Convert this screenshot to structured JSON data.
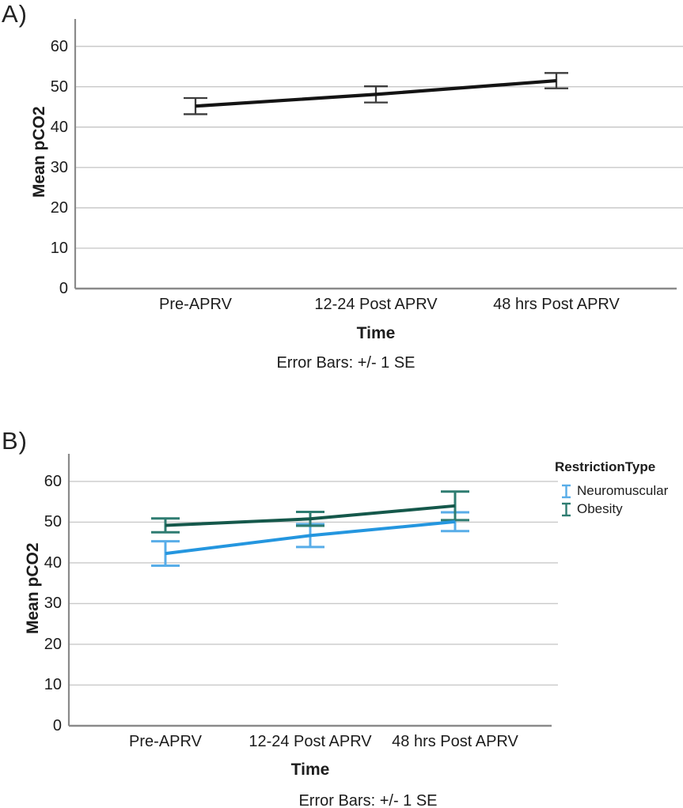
{
  "panels": [
    {
      "label": "A)"
    },
    {
      "label": "B)"
    }
  ],
  "chart_data": [
    {
      "type": "line",
      "panel": "A",
      "title": "",
      "xlabel": "Time",
      "ylabel": "Mean pCO2",
      "caption": "Error Bars: +/- 1 SE",
      "categories": [
        "Pre-APRV",
        "12-24 Post APRV",
        "48 hrs Post APRV"
      ],
      "yticks": [
        0,
        10,
        20,
        30,
        40,
        50,
        60
      ],
      "ylim": [
        0,
        66
      ],
      "grid": true,
      "legend": null,
      "error_bars": "+/- 1 SE",
      "series": [
        {
          "name": "Mean pCO2",
          "color": "#141414",
          "error_color": "#3c3c3c",
          "values": [
            45.2,
            48.1,
            51.5
          ],
          "se": [
            2.0,
            2.0,
            1.9
          ]
        }
      ]
    },
    {
      "type": "line",
      "panel": "B",
      "title": "",
      "xlabel": "Time",
      "ylabel": "Mean pCO2",
      "caption": "Error Bars: +/- 1 SE",
      "categories": [
        "Pre-APRV",
        "12-24 Post APRV",
        "48 hrs Post APRV"
      ],
      "yticks": [
        0,
        10,
        20,
        30,
        40,
        50,
        60
      ],
      "ylim": [
        0,
        66
      ],
      "grid": true,
      "legend": {
        "title": "RestrictionType",
        "position": "right"
      },
      "error_bars": "+/- 1 SE",
      "series": [
        {
          "name": "Neuromuscular",
          "color": "#2496df",
          "error_color": "#58ade8",
          "values": [
            42.3,
            46.7,
            50.1
          ],
          "se": [
            3.0,
            2.8,
            2.3
          ]
        },
        {
          "name": "Obesity",
          "color": "#15584b",
          "error_color": "#2e7c71",
          "values": [
            49.2,
            50.8,
            54.0
          ],
          "se": [
            1.7,
            1.7,
            3.5
          ]
        }
      ]
    }
  ],
  "colors": {
    "gridline": "#c9c9c9",
    "axis": "#8a8a8a",
    "text": "#1c1c1c"
  }
}
